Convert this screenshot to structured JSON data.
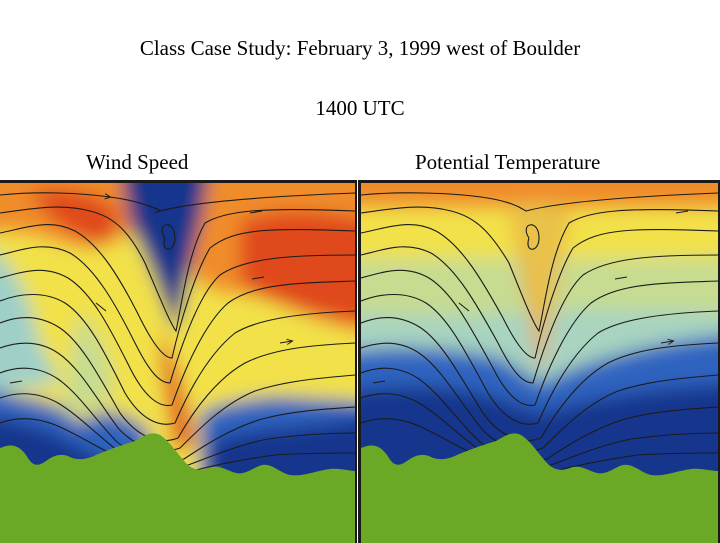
{
  "header": {
    "title": "Class Case Study:  February 3, 1999 west of Boulder",
    "time": "1400 UTC"
  },
  "panels": [
    {
      "label": "Wind Speed",
      "field": "wind-speed"
    },
    {
      "label": "Potential Temperature",
      "field": "potential-temperature"
    }
  ],
  "colors": {
    "terrain": "#6aa826",
    "streamline": "#1c1c1c",
    "dark_blue": "#13348c",
    "blue": "#2d63c0",
    "light_blue": "#7fc3d8",
    "pale_green": "#c7dc90",
    "yellow": "#f2e14a",
    "orange": "#f08c2c",
    "red": "#e04a1e"
  }
}
